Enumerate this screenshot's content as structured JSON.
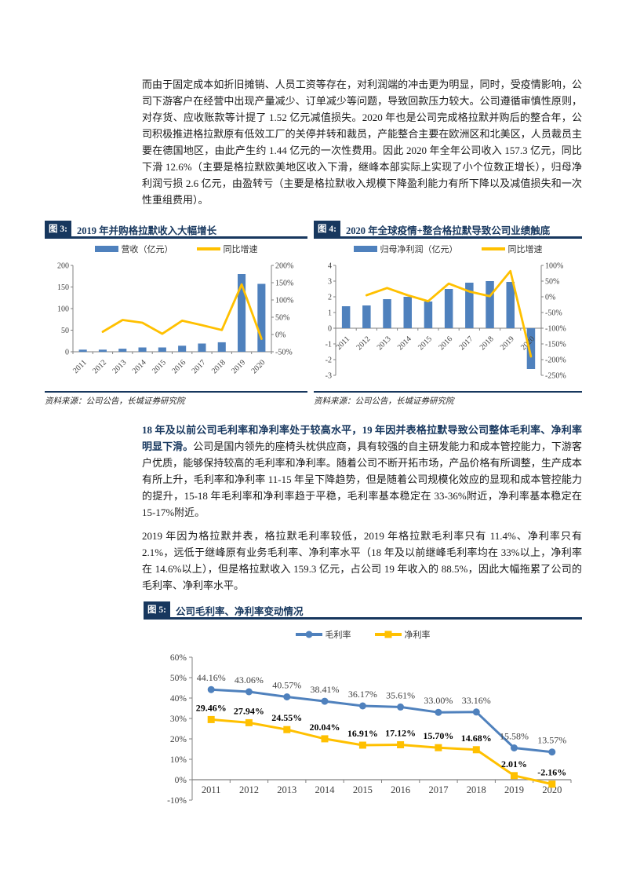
{
  "colors": {
    "navy": "#17375E",
    "bar_blue": "#4F81BD",
    "line_yellow": "#FFC000",
    "series_blue": "#4F81BD",
    "axis_text": "#404040",
    "axis_line": "#808080",
    "label_dark": "#404040",
    "label_black": "#000000"
  },
  "page": {
    "paragraph1": "而由于固定成本如折旧摊销、人员工资等存在，对利润端的冲击更为明显，同时，受疫情影响，公司下游客户在经营中出现产量减少、订单减少等问题，导致回款压力较大。公司遵循审慎性原则，对存货、应收账款等计提了 1.52 亿元减值损失。2020 年也是公司完成格拉默并购后的整合年，公司积极推进格拉默原有低效工厂的关停并转和裁员，产能整合主要在欧洲区和北美区，人员裁员主要在德国地区，由此产生约 1.44 亿元的一次性费用。因此 2020 年全年公司收入 157.3 亿元，同比下滑 12.6%（主要是格拉默欧美地区收入下滑，继峰本部实际上实现了小个位数正增长），归母净利润亏损 2.6 亿元，由盈转亏（主要是格拉默收入规模下降盈利能力有所下降以及减值损失和一次性重组费用）。",
    "paragraph2_bold": "18 年及以前公司毛利率和净利率处于较高水平，19 年因并表格拉默导致公司整体毛利率、净利率明显下滑。",
    "paragraph2_rest": "公司是国内领先的座椅头枕供应商，具有较强的自主研发能力和成本管控能力，下游客户优质，能够保持较高的毛利率和净利率。随着公司不断开拓市场，产品价格有所调整，生产成本有所上升，毛利率和净利率 11-15 年呈下降趋势，但是随着公司规模化效应的显现和成本管控能力的提升，15-18 年毛利率和净利率趋于平稳，毛利率基本稳定在 33-36%附近，净利率基本稳定在 15-17%附近。",
    "paragraph3": "2019 年因为格拉默并表，格拉默毛利率较低，2019 年格拉默毛利率只有 11.4%、净利率只有 2.1%，远低于继峰原有业务毛利率、净利率水平（18 年及以前继峰毛利率均在 33%以上，净利率在 14.6%以上），但是格拉默收入 159.3 亿元，占公司 19 年收入的 88.5%，因此大幅拖累了公司的毛利率、净利率水平。"
  },
  "chart_data": [
    {
      "id": "chart3",
      "type": "bar",
      "figure_label": "图 3:",
      "title": "2019 年并购格拉默收入大幅增长",
      "source": "资料来源：公司公告，长城证券研究院",
      "categories": [
        "2011",
        "2012",
        "2013",
        "2014",
        "2015",
        "2016",
        "2017",
        "2018",
        "2019",
        "2020"
      ],
      "bar_series": {
        "name": "营收（亿元）",
        "values": [
          5,
          5,
          7,
          10,
          10,
          14,
          19,
          22,
          180,
          157.3
        ]
      },
      "line_series": {
        "name": "同比增速",
        "values": [
          null,
          8,
          42,
          34,
          2,
          40,
          27,
          13,
          145,
          -12.6
        ]
      },
      "left_axis": {
        "min": 0,
        "max": 200,
        "step": 50,
        "labels": [
          "0",
          "50",
          "100",
          "150",
          "200"
        ]
      },
      "right_axis": {
        "min": -50,
        "max": 200,
        "step": 50,
        "labels": [
          "-50%",
          "0%",
          "50%",
          "100%",
          "150%",
          "200%"
        ]
      }
    },
    {
      "id": "chart4",
      "type": "bar",
      "figure_label": "图 4:",
      "title": "2020 年全球疫情+整合格拉默导致公司业绩触底",
      "source": "资料来源：公司公告，长城证券研究院",
      "categories": [
        "2011",
        "2012",
        "2013",
        "2014",
        "2015",
        "2016",
        "2017",
        "2018",
        "2019",
        "2020"
      ],
      "bar_series": {
        "name": "归母净利润（亿元）",
        "values": [
          1.4,
          1.45,
          1.85,
          2.0,
          1.7,
          2.5,
          2.9,
          3.0,
          2.95,
          -2.6
        ]
      },
      "line_series": {
        "name": "同比增速",
        "values": [
          null,
          5,
          28,
          5,
          -14,
          42,
          17,
          2,
          82,
          -190
        ]
      },
      "left_axis": {
        "min": -3,
        "max": 4,
        "step": 1,
        "labels": [
          "-3",
          "-2",
          "-1",
          "0",
          "1",
          "2",
          "3",
          "4"
        ]
      },
      "right_axis": {
        "min": -250,
        "max": 100,
        "step": 50,
        "labels": [
          "-250%",
          "-200%",
          "-150%",
          "-100%",
          "-50%",
          "0%",
          "50%",
          "100%"
        ]
      }
    },
    {
      "id": "chart5",
      "type": "line",
      "figure_label": "图 5:",
      "title": "公司毛利率、净利率变动情况",
      "categories": [
        "2011",
        "2012",
        "2013",
        "2014",
        "2015",
        "2016",
        "2017",
        "2018",
        "2019",
        "2020"
      ],
      "series": [
        {
          "name": "毛利率",
          "marker": "circle",
          "values": [
            44.16,
            43.06,
            40.57,
            38.41,
            36.17,
            35.61,
            33.0,
            33.16,
            15.58,
            13.57
          ],
          "labels": [
            "44.16%",
            "43.06%",
            "40.57%",
            "38.41%",
            "36.17%",
            "35.61%",
            "33.00%",
            "33.16%",
            "15.58%",
            "13.57%"
          ]
        },
        {
          "name": "净利率",
          "marker": "square",
          "values": [
            29.46,
            27.94,
            24.55,
            20.04,
            16.91,
            17.12,
            15.7,
            14.68,
            2.01,
            -2.16
          ],
          "labels": [
            "29.46%",
            "27.94%",
            "24.55%",
            "20.04%",
            "16.91%",
            "17.12%",
            "15.70%",
            "14.68%",
            "2.01%",
            "-2.16%"
          ]
        }
      ],
      "y_axis": {
        "min": -10,
        "max": 60,
        "step": 10,
        "labels": [
          "-10%",
          "0%",
          "10%",
          "20%",
          "30%",
          "40%",
          "50%",
          "60%"
        ]
      }
    }
  ]
}
